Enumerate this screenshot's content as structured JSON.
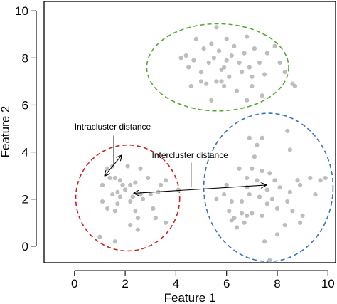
{
  "chart_data": {
    "type": "scatter",
    "title": "",
    "xlabel": "Feature 1",
    "ylabel": "Feature 2",
    "xlim": [
      -1.2,
      10.3
    ],
    "ylim": [
      -0.7,
      10.4
    ],
    "xticks": [
      "0",
      "2",
      "4",
      "6",
      "8",
      "10"
    ],
    "yticks": [
      "0",
      "2",
      "4",
      "6",
      "8",
      "10"
    ],
    "grid": false,
    "point_color": "#bdbdbd",
    "points": [
      [
        1.6,
        2.9
      ],
      [
        1.5,
        3.4
      ],
      [
        1.4,
        2.9
      ],
      [
        1.3,
        3.3
      ],
      [
        1.9,
        2.6
      ],
      [
        2.2,
        2.6
      ],
      [
        2.4,
        2.7
      ],
      [
        2.9,
        2.9
      ],
      [
        2.6,
        3.3
      ],
      [
        1.1,
        1.9
      ],
      [
        1.6,
        1.5
      ],
      [
        1.8,
        2.1
      ],
      [
        2.2,
        1.9
      ],
      [
        2.4,
        1.5
      ],
      [
        2.6,
        2.2
      ],
      [
        3.0,
        2.2
      ],
      [
        3.4,
        2.6
      ],
      [
        3.1,
        1.6
      ],
      [
        2.5,
        1.2
      ],
      [
        2.5,
        0.7
      ],
      [
        1.6,
        0.2
      ],
      [
        1.0,
        0.4
      ],
      [
        1.1,
        2.6
      ],
      [
        1.7,
        2.3
      ],
      [
        3.3,
        2.3
      ],
      [
        3.6,
        2.8
      ],
      [
        2.3,
        2.1
      ],
      [
        1.5,
        2.2
      ],
      [
        1.7,
        1.8
      ],
      [
        2.0,
        2.4
      ],
      [
        1.8,
        2.8
      ],
      [
        2.1,
        3.4
      ],
      [
        2.7,
        2.0
      ],
      [
        3.2,
        1.2
      ],
      [
        3.6,
        1.0
      ],
      [
        4.1,
        2.4
      ],
      [
        1.3,
        1.6
      ],
      [
        2.2,
        0.9
      ],
      [
        4.2,
        8.0
      ],
      [
        4.4,
        8.1
      ],
      [
        4.5,
        7.6
      ],
      [
        4.7,
        7.9
      ],
      [
        5.1,
        8.4
      ],
      [
        5.3,
        7.8
      ],
      [
        5.4,
        8.6
      ],
      [
        5.5,
        8.0
      ],
      [
        5.7,
        8.3
      ],
      [
        5.8,
        7.5
      ],
      [
        6.0,
        7.9
      ],
      [
        6.2,
        8.1
      ],
      [
        6.5,
        7.8
      ],
      [
        6.7,
        8.2
      ],
      [
        6.9,
        7.6
      ],
      [
        7.0,
        7.2
      ],
      [
        7.3,
        7.8
      ],
      [
        7.5,
        7.3
      ],
      [
        7.6,
        8.2
      ],
      [
        7.9,
        8.5
      ],
      [
        8.1,
        7.8
      ],
      [
        8.3,
        7.4
      ],
      [
        8.6,
        6.9
      ],
      [
        8.7,
        6.8
      ],
      [
        4.6,
        6.8
      ],
      [
        5.0,
        7.4
      ],
      [
        5.2,
        6.9
      ],
      [
        5.6,
        7.0
      ],
      [
        5.9,
        7.6
      ],
      [
        6.1,
        7.2
      ],
      [
        6.4,
        6.6
      ],
      [
        7.0,
        6.8
      ],
      [
        4.8,
        8.8
      ],
      [
        5.8,
        7.0
      ],
      [
        6.3,
        8.5
      ],
      [
        6.6,
        7.4
      ],
      [
        7.4,
        6.4
      ],
      [
        5.0,
        7.0
      ],
      [
        6.0,
        8.8
      ],
      [
        5.4,
        6.2
      ],
      [
        6.8,
        8.9
      ],
      [
        7.1,
        8.4
      ],
      [
        6.8,
        6.2
      ],
      [
        5.9,
        6.8
      ],
      [
        5.6,
        9.3
      ],
      [
        6.9,
        4.6
      ],
      [
        7.4,
        4.6
      ],
      [
        8.4,
        4.9
      ],
      [
        7.1,
        3.8
      ],
      [
        6.5,
        3.3
      ],
      [
        6.8,
        2.9
      ],
      [
        7.2,
        2.8
      ],
      [
        7.7,
        3.1
      ],
      [
        7.9,
        2.8
      ],
      [
        8.1,
        2.5
      ],
      [
        8.5,
        2.3
      ],
      [
        8.9,
        2.6
      ],
      [
        9.3,
        2.9
      ],
      [
        9.7,
        2.8
      ],
      [
        9.9,
        2.9
      ],
      [
        5.6,
        2.0
      ],
      [
        5.9,
        2.2
      ],
      [
        6.2,
        1.9
      ],
      [
        6.6,
        1.9
      ],
      [
        6.9,
        2.2
      ],
      [
        7.3,
        2.1
      ],
      [
        7.6,
        1.8
      ],
      [
        8.0,
        1.6
      ],
      [
        8.4,
        1.9
      ],
      [
        8.6,
        1.5
      ],
      [
        9.0,
        1.3
      ],
      [
        6.1,
        1.5
      ],
      [
        6.3,
        1.2
      ],
      [
        6.7,
        1.0
      ],
      [
        7.0,
        1.4
      ],
      [
        7.4,
        1.3
      ],
      [
        7.5,
        0.2
      ],
      [
        7.7,
        -0.6
      ],
      [
        8.0,
        0.5
      ],
      [
        8.3,
        0.9
      ],
      [
        7.0,
        3.3
      ],
      [
        7.4,
        3.2
      ],
      [
        6.8,
        2.5
      ],
      [
        8.8,
        2.8
      ],
      [
        9.5,
        2.2
      ],
      [
        7.8,
        2.0
      ],
      [
        6.6,
        1.4
      ],
      [
        6.0,
        2.6
      ],
      [
        8.9,
        1.0
      ],
      [
        7.2,
        4.3
      ],
      [
        6.8,
        1.3
      ],
      [
        6.4,
        0.8
      ],
      [
        6.2,
        1.1
      ],
      [
        8.5,
        4.1
      ],
      [
        7.6,
        2.4
      ]
    ],
    "clusters": [
      {
        "cx": 2.1,
        "cy": 2.05,
        "rx": 2.05,
        "ry": 2.25,
        "color": "#cc2222"
      },
      {
        "cx": 5.65,
        "cy": 7.6,
        "rx": 2.8,
        "ry": 1.85,
        "color": "#55a832"
      },
      {
        "cx": 7.65,
        "cy": 2.5,
        "rx": 2.55,
        "ry": 3.15,
        "color": "#3a6fc4"
      }
    ],
    "annotations": [
      {
        "text": "Intracluster distance",
        "tx": 0.0,
        "ty": 4.95,
        "arrow_from": [
          1.2,
          3.0
        ],
        "arrow_to": [
          1.85,
          3.85
        ]
      },
      {
        "text": "Intercluster distance",
        "tx": 3.05,
        "ty": 3.75,
        "arrow_from": [
          2.35,
          2.25
        ],
        "arrow_to": [
          7.55,
          2.6
        ]
      }
    ]
  }
}
